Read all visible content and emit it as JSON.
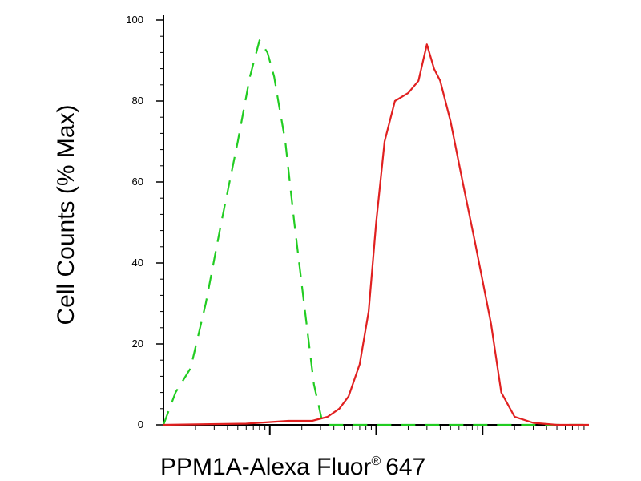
{
  "chart_data": {
    "type": "line",
    "xlabel": "PPM1A-Alexa Fluor",
    "xlabel_superscript": "®",
    "xlabel_suffix": "647",
    "ylabel": "Cell Counts (% Max)",
    "x_scale": "log",
    "xlim": [
      10,
      100000
    ],
    "ylim": [
      0,
      100
    ],
    "y_ticks": [
      0,
      20,
      40,
      60,
      80,
      100
    ],
    "y_tick_labels": [
      "0",
      "20",
      "40",
      "60",
      "80",
      "100"
    ],
    "x_major_ticks": [
      100,
      1000,
      10000
    ],
    "grid": false,
    "legend": "none",
    "series": [
      {
        "color": "#22cc22",
        "dash": "dashed",
        "x": [
          10,
          13,
          18,
          25,
          35,
          50,
          65,
          80,
          95,
          110,
          120,
          140,
          170,
          210,
          260,
          310,
          350,
          400,
          1000,
          10000,
          100000
        ],
        "y": [
          0,
          8,
          14,
          30,
          50,
          70,
          86,
          95,
          92,
          86,
          80,
          70,
          50,
          30,
          10,
          1,
          0,
          0,
          0,
          0,
          0
        ]
      },
      {
        "color": "#e02020",
        "dash": "solid",
        "x": [
          10,
          60,
          150,
          250,
          350,
          450,
          550,
          700,
          850,
          1000,
          1200,
          1500,
          2000,
          2500,
          3000,
          3500,
          4000,
          5000,
          6500,
          8500,
          12000,
          15000,
          20000,
          30000,
          50000,
          100000
        ],
        "y": [
          0,
          0.3,
          1,
          1,
          2,
          4,
          7,
          15,
          28,
          50,
          70,
          80,
          82,
          85,
          94,
          88,
          85,
          75,
          60,
          45,
          25,
          8,
          2,
          0.5,
          0,
          0
        ]
      }
    ]
  }
}
